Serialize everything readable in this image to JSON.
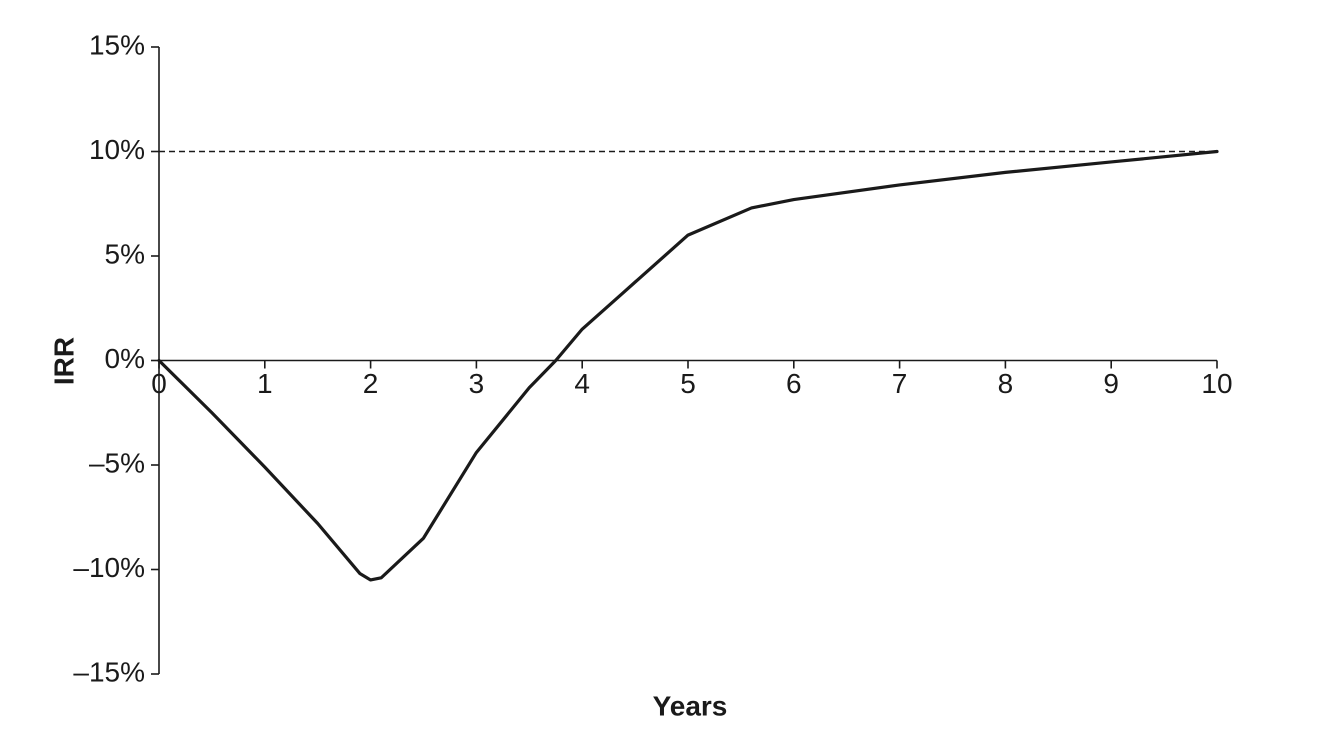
{
  "chart_data": {
    "type": "line",
    "x_label": "Years",
    "y_label": "IRR",
    "x": [
      0,
      0.5,
      1,
      1.5,
      1.9,
      2,
      2.1,
      2.5,
      3,
      3.5,
      3.75,
      4,
      4.4,
      5,
      5.6,
      6,
      7,
      8,
      9,
      10
    ],
    "series": [
      {
        "color": "#1a1a1a",
        "values": [
          0,
          -2.5,
          -5.1,
          -7.8,
          -10.2,
          -10.5,
          -10.4,
          -8.5,
          -4.4,
          -1.3,
          0,
          1.5,
          3.3,
          6.0,
          7.3,
          7.7,
          8.4,
          9.0,
          9.5,
          10
        ]
      }
    ],
    "xlim": [
      0,
      10
    ],
    "xticks": [
      0,
      1,
      2,
      3,
      4,
      5,
      6,
      7,
      8,
      9,
      10
    ],
    "ylim": [
      -15,
      15
    ],
    "yticks": [
      {
        "value": -15,
        "label": "–15%"
      },
      {
        "value": -10,
        "label": "–10%"
      },
      {
        "value": -5,
        "label": "–5%"
      },
      {
        "value": 0,
        "label": "0%"
      },
      {
        "value": 5,
        "label": "5%"
      },
      {
        "value": 10,
        "label": "10%"
      },
      {
        "value": 15,
        "label": "15%"
      }
    ],
    "reference_lines": [
      {
        "value": 10,
        "style": "dashed"
      }
    ]
  }
}
